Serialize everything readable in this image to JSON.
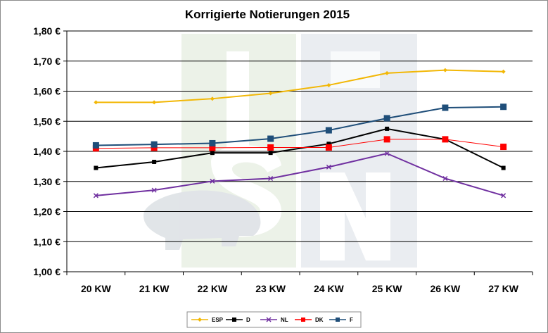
{
  "chart_data": {
    "type": "line",
    "title": "Korrigierte Notierungen 2015",
    "xlabel": "",
    "ylabel": "",
    "categories": [
      "20 KW",
      "21 KW",
      "22 KW",
      "23 KW",
      "24 KW",
      "25 KW",
      "26 KW",
      "27 KW"
    ],
    "ylim": [
      1.0,
      1.8
    ],
    "y_ticks": [
      "1,00 €",
      "1,10 €",
      "1,20 €",
      "1,30 €",
      "1,40 €",
      "1,50 €",
      "1,60 €",
      "1,70 €",
      "1,80 €"
    ],
    "grid": true,
    "legend_position": "bottom",
    "series": [
      {
        "name": "ESP",
        "color": "#F2B705",
        "marker": "diamond",
        "values": [
          1.563,
          1.563,
          1.575,
          1.593,
          1.62,
          1.66,
          1.67,
          1.665
        ]
      },
      {
        "name": "D",
        "color": "#000000",
        "marker": "square",
        "values": [
          1.345,
          1.365,
          1.395,
          1.395,
          1.425,
          1.475,
          1.44,
          1.345
        ]
      },
      {
        "name": "NL",
        "color": "#7030A0",
        "marker": "x",
        "values": [
          1.253,
          1.271,
          1.301,
          1.31,
          1.348,
          1.393,
          1.31,
          1.253
        ]
      },
      {
        "name": "DK",
        "color": "#FF0000",
        "marker": "square",
        "values": [
          1.41,
          1.412,
          1.412,
          1.413,
          1.413,
          1.44,
          1.44,
          1.415
        ]
      },
      {
        "name": "F",
        "color": "#1F4E79",
        "marker": "square",
        "values": [
          1.42,
          1.423,
          1.427,
          1.442,
          1.47,
          1.51,
          1.545,
          1.548
        ]
      }
    ]
  }
}
